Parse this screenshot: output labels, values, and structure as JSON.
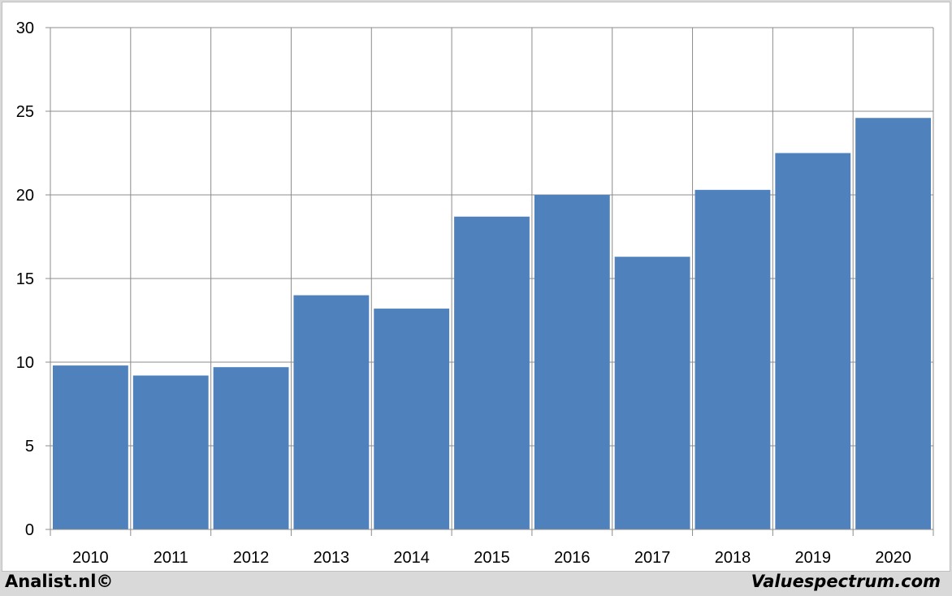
{
  "chart_data": {
    "type": "bar",
    "categories": [
      "2010",
      "2011",
      "2012",
      "2013",
      "2014",
      "2015",
      "2016",
      "2017",
      "2018",
      "2019",
      "2020"
    ],
    "values": [
      9.8,
      9.2,
      9.7,
      14.0,
      13.2,
      18.7,
      20.0,
      16.3,
      20.3,
      22.5,
      24.6
    ],
    "yticks": [
      "0",
      "5",
      "10",
      "15",
      "20",
      "25",
      "30"
    ],
    "ylim": [
      0,
      30
    ],
    "grid": true,
    "bar_color": "#4f81bd",
    "title": "",
    "xlabel": "",
    "ylabel": ""
  },
  "footer": {
    "left": "Analist.nl©",
    "right": "Valuespectrum.com"
  }
}
